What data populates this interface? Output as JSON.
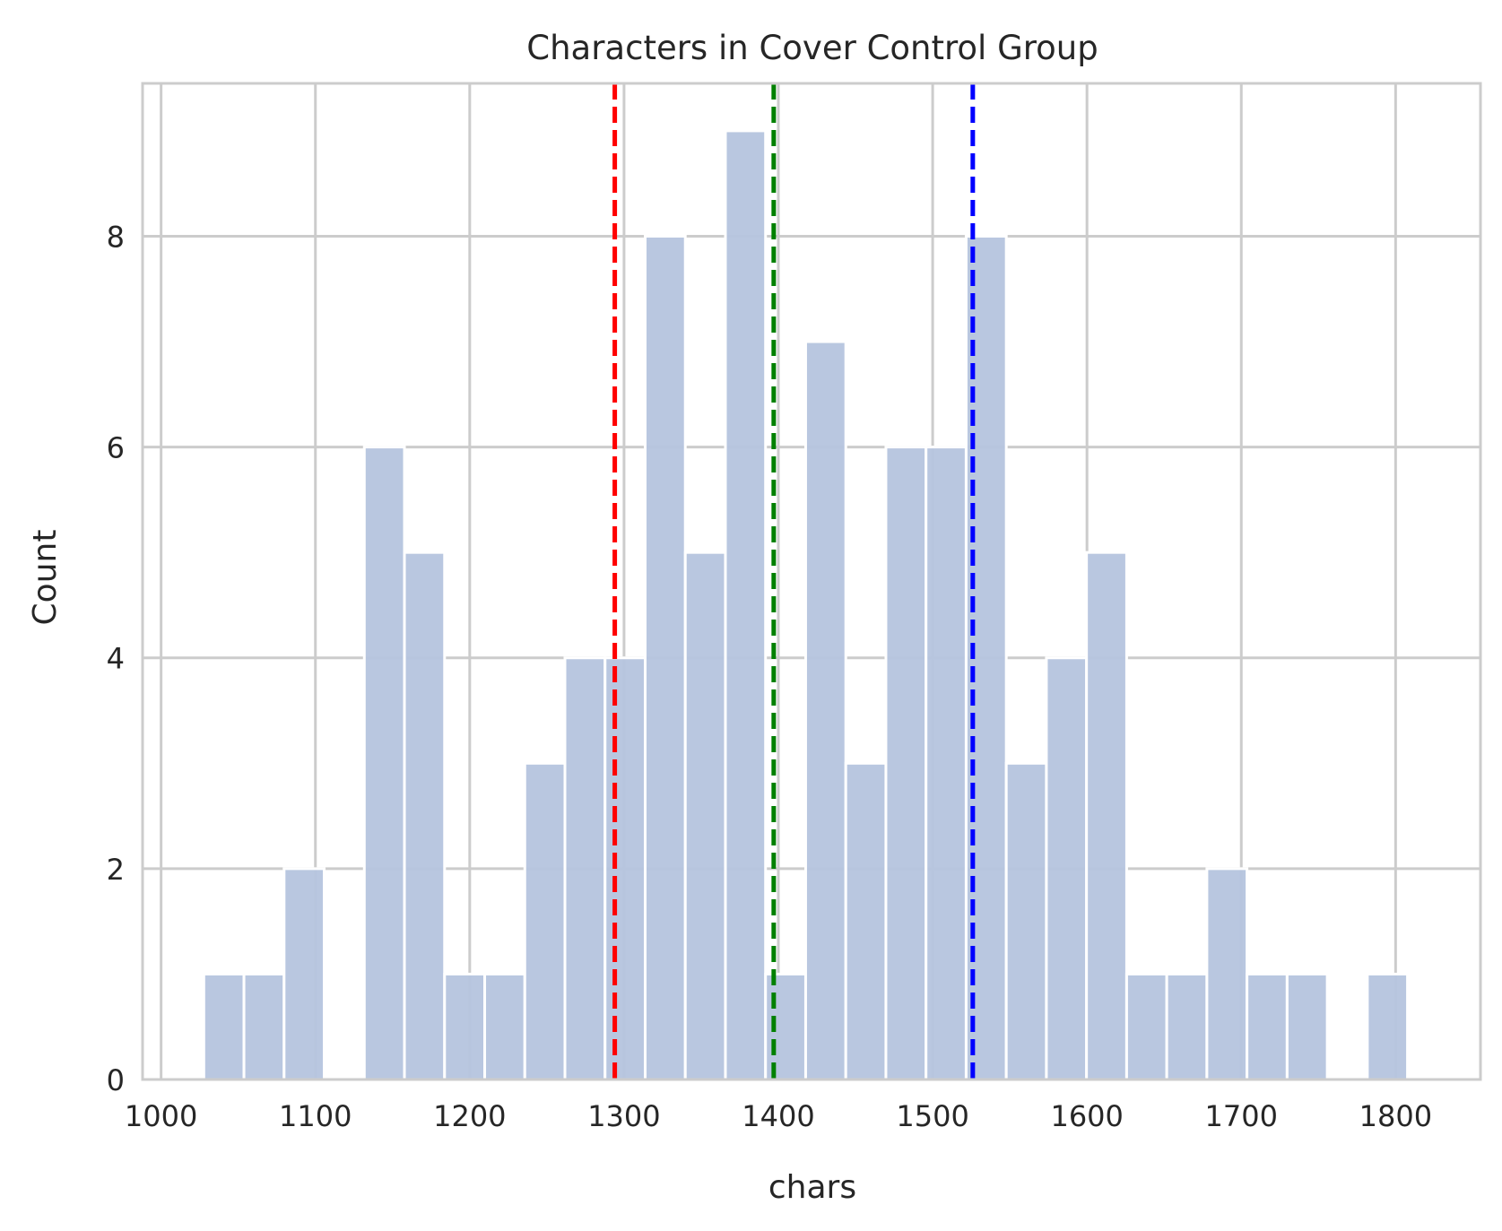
{
  "chart_data": {
    "type": "bar",
    "title": "Characters in Cover Control Group",
    "xlabel": "chars",
    "ylabel": "Count",
    "xlim": [
      988,
      1855
    ],
    "ylim": [
      0,
      9.45
    ],
    "grid": true,
    "x_ticks": [
      1000,
      1100,
      1200,
      1300,
      1400,
      1500,
      1600,
      1700,
      1800
    ],
    "y_ticks": [
      0,
      2,
      4,
      6,
      8
    ],
    "x_tick_labels": [
      "1000",
      "1100",
      "1200",
      "1300",
      "1400",
      "1500",
      "1600",
      "1700",
      "1800"
    ],
    "y_tick_labels": [
      "0",
      "2",
      "4",
      "6",
      "8"
    ],
    "bin_edges": [
      1027.7,
      1053.7,
      1079.7,
      1105.7,
      1131.7,
      1157.7,
      1183.7,
      1209.7,
      1235.7,
      1261.7,
      1287.7,
      1313.7,
      1339.7,
      1365.7,
      1391.7,
      1417.7,
      1443.7,
      1469.7,
      1495.7,
      1521.7,
      1547.7,
      1573.7,
      1599.7,
      1625.7,
      1651.7,
      1677.7,
      1703.7,
      1729.7,
      1755.7,
      1781.7,
      1807.7
    ],
    "counts": [
      1,
      1,
      2,
      0,
      6,
      5,
      1,
      1,
      3,
      4,
      4,
      8,
      5,
      9,
      1,
      7,
      3,
      6,
      6,
      8,
      3,
      4,
      5,
      1,
      1,
      2,
      1,
      1,
      0,
      1
    ],
    "bar_color": "#b5c4de",
    "vlines": [
      {
        "x": 1294,
        "color": "#ff0000",
        "style": "dashed"
      },
      {
        "x": 1397,
        "color": "#008000",
        "style": "dashed"
      },
      {
        "x": 1526,
        "color": "#0000ff",
        "style": "dashed"
      }
    ]
  }
}
